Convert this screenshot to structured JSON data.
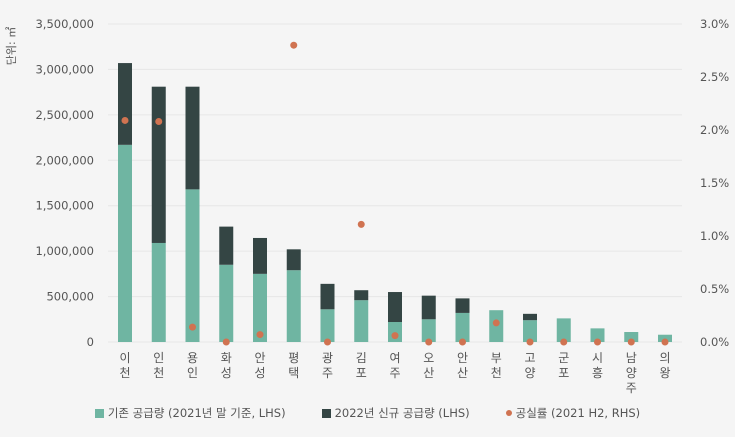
{
  "chart_data": {
    "type": "bar",
    "stacked": true,
    "ylabel": "단위: ㎡",
    "ylim": [
      0,
      3500000
    ],
    "y2lim": [
      0,
      0.03
    ],
    "yticks": [
      "0",
      "500,000",
      "1,000,000",
      "1,500,000",
      "2,000,000",
      "2,500,000",
      "3,000,000",
      "3,500,000"
    ],
    "y2ticks": [
      "0.0%",
      "0.5%",
      "1.0%",
      "1.5%",
      "2.0%",
      "2.5%",
      "3.0%"
    ],
    "grid": true,
    "legend_position": "bottom",
    "categories": [
      "이천",
      "인천",
      "용인",
      "화성",
      "안성",
      "평택",
      "광주",
      "김포",
      "여주",
      "오산",
      "안산",
      "부천",
      "고양",
      "군포",
      "시흥",
      "남양주",
      "의왕"
    ],
    "series": [
      {
        "name": "기존 공급량 (2021년 말 기준, LHS)",
        "type": "bar",
        "axis": "left",
        "color": "#6fb5a2",
        "values": [
          2170000,
          1090000,
          1680000,
          850000,
          750000,
          790000,
          360000,
          460000,
          220000,
          250000,
          320000,
          350000,
          240000,
          260000,
          150000,
          110000,
          80000
        ]
      },
      {
        "name": "2022년 신규 공급량 (LHS)",
        "type": "bar",
        "axis": "left",
        "color": "#344544",
        "values": [
          900000,
          1720000,
          1130000,
          420000,
          395000,
          230000,
          280000,
          110000,
          330000,
          260000,
          160000,
          0,
          70000,
          0,
          0,
          0,
          0
        ]
      },
      {
        "name": "공실률 (2021 H2, RHS)",
        "type": "scatter",
        "axis": "right",
        "color": "#d07351",
        "values": [
          0.0209,
          0.0208,
          0.0014,
          0,
          0.0007,
          0.028,
          0,
          0.0111,
          0.0006,
          0,
          0,
          0.0018,
          0,
          0,
          0,
          0,
          0
        ]
      }
    ]
  }
}
